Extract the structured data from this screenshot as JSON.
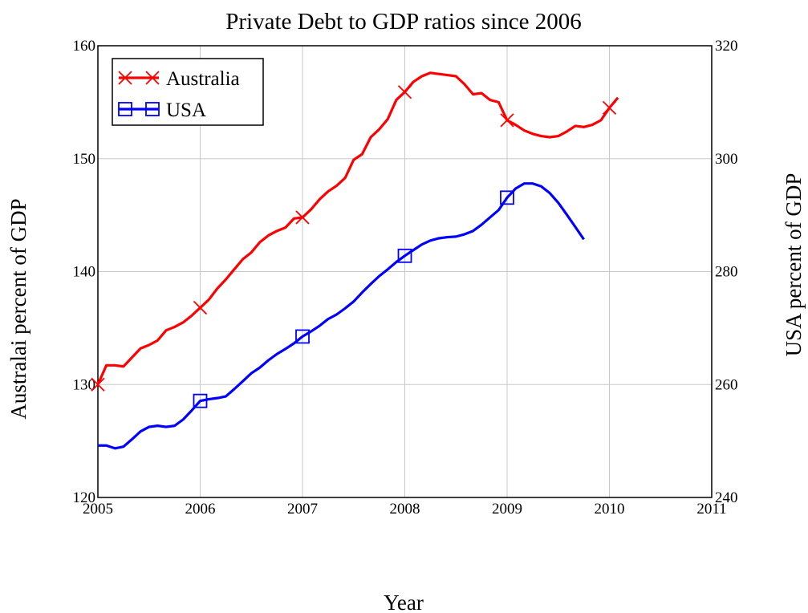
{
  "chart_data": {
    "type": "line",
    "title": "Private Debt to GDP ratios since 2006",
    "xlabel": "Year",
    "ylabel_left": "Australai percent of GDP",
    "ylabel_right": "USA percent of GDP",
    "xlim": [
      2005,
      2011
    ],
    "ylim_left": [
      120,
      160
    ],
    "ylim_right": [
      240,
      320
    ],
    "x_ticks": [
      2005,
      2006,
      2007,
      2008,
      2009,
      2010,
      2011
    ],
    "y_ticks_left": [
      120,
      130,
      140,
      150,
      160
    ],
    "y_ticks_right": [
      240,
      260,
      280,
      300,
      320
    ],
    "grid": true,
    "legend_position": "top-left",
    "colors": {
      "australia": "#ff0000",
      "usa": "#0000ff"
    },
    "series": [
      {
        "name": "Australia",
        "axis": "left",
        "marker": "x",
        "marker_x": [
          2005.0,
          2006.0,
          2007.0,
          2008.0,
          2009.0,
          2010.0
        ],
        "x": [
          2005.0,
          2005.083,
          2005.167,
          2005.25,
          2005.333,
          2005.417,
          2005.5,
          2005.583,
          2005.667,
          2005.75,
          2005.833,
          2005.917,
          2006.0,
          2006.083,
          2006.167,
          2006.25,
          2006.333,
          2006.417,
          2006.5,
          2006.583,
          2006.667,
          2006.75,
          2006.833,
          2006.917,
          2007.0,
          2007.083,
          2007.167,
          2007.25,
          2007.333,
          2007.417,
          2007.5,
          2007.583,
          2007.667,
          2007.75,
          2007.833,
          2007.917,
          2008.0,
          2008.083,
          2008.167,
          2008.25,
          2008.333,
          2008.417,
          2008.5,
          2008.583,
          2008.667,
          2008.75,
          2008.833,
          2008.917,
          2009.0,
          2009.083,
          2009.167,
          2009.25,
          2009.333,
          2009.417,
          2009.5,
          2009.583,
          2009.667,
          2009.75,
          2009.833,
          2009.917,
          2010.0,
          2010.083
        ],
        "values": [
          130.0,
          131.7,
          131.7,
          131.6,
          132.4,
          133.2,
          133.5,
          133.9,
          134.8,
          135.1,
          135.5,
          136.1,
          136.8,
          137.5,
          138.5,
          139.3,
          140.2,
          141.1,
          141.7,
          142.6,
          143.2,
          143.6,
          143.9,
          144.7,
          144.8,
          145.5,
          146.4,
          147.1,
          147.6,
          148.3,
          149.9,
          150.4,
          151.9,
          152.6,
          153.5,
          155.2,
          155.9,
          156.8,
          157.3,
          157.6,
          157.5,
          157.4,
          157.3,
          156.6,
          155.7,
          155.8,
          155.2,
          155.0,
          153.4,
          153.0,
          152.5,
          152.2,
          152.0,
          151.9,
          152.0,
          152.4,
          152.9,
          152.8,
          153.0,
          153.4,
          154.5,
          155.4
        ]
      },
      {
        "name": "USA",
        "axis": "right",
        "marker": "square",
        "marker_x": [
          2006.0,
          2007.0,
          2008.0,
          2009.0
        ],
        "x": [
          2005.0,
          2005.083,
          2005.167,
          2005.25,
          2005.333,
          2005.417,
          2005.5,
          2005.583,
          2005.667,
          2005.75,
          2005.833,
          2005.917,
          2006.0,
          2006.083,
          2006.167,
          2006.25,
          2006.333,
          2006.417,
          2006.5,
          2006.583,
          2006.667,
          2006.75,
          2006.833,
          2006.917,
          2007.0,
          2007.083,
          2007.167,
          2007.25,
          2007.333,
          2007.417,
          2007.5,
          2007.583,
          2007.667,
          2007.75,
          2007.833,
          2007.917,
          2008.0,
          2008.083,
          2008.167,
          2008.25,
          2008.333,
          2008.417,
          2008.5,
          2008.583,
          2008.667,
          2008.75,
          2008.833,
          2008.917,
          2009.0,
          2009.083,
          2009.167,
          2009.25,
          2009.333,
          2009.417,
          2009.5,
          2009.583,
          2009.667,
          2009.75
        ],
        "values": [
          249.2,
          249.2,
          248.7,
          249.0,
          250.3,
          251.7,
          252.5,
          252.7,
          252.5,
          252.7,
          253.8,
          255.4,
          257.1,
          257.4,
          257.6,
          257.9,
          259.2,
          260.6,
          262.0,
          263.0,
          264.3,
          265.4,
          266.3,
          267.3,
          268.5,
          269.4,
          270.4,
          271.6,
          272.4,
          273.5,
          274.7,
          276.3,
          277.8,
          279.2,
          280.4,
          281.7,
          282.8,
          283.8,
          284.8,
          285.5,
          285.9,
          286.1,
          286.2,
          286.6,
          287.2,
          288.3,
          289.6,
          290.9,
          293.1,
          294.7,
          295.6,
          295.6,
          295.1,
          293.9,
          292.2,
          290.1,
          287.9,
          285.7
        ]
      }
    ]
  }
}
